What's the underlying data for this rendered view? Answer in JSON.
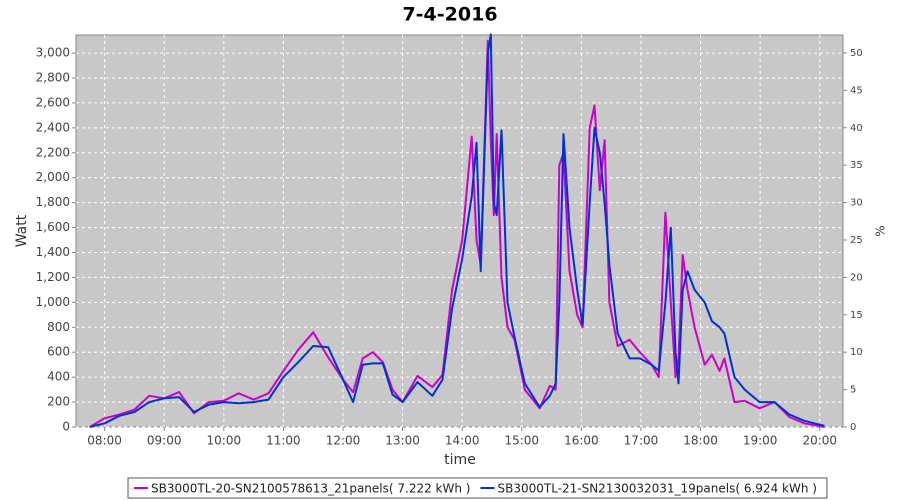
{
  "chart_data": {
    "type": "line",
    "title": "7-4-2016",
    "x_label": "time",
    "y_label": "Watt",
    "y2_label": "%",
    "x": [
      7.75,
      8,
      8.25,
      8.5,
      8.75,
      9,
      9.25,
      9.5,
      9.75,
      10,
      10.25,
      10.5,
      10.75,
      11,
      11.25,
      11.5,
      11.75,
      12,
      12.17,
      12.33,
      12.5,
      12.67,
      12.83,
      13,
      13.25,
      13.5,
      13.67,
      13.83,
      14.0,
      14.16,
      14.24,
      14.31,
      14.43,
      14.48,
      14.53,
      14.58,
      14.66,
      14.76,
      14.88,
      15.05,
      15.3,
      15.47,
      15.57,
      15.63,
      15.7,
      15.8,
      15.93,
      16.02,
      16.14,
      16.22,
      16.31,
      16.39,
      16.47,
      16.61,
      16.81,
      16.98,
      17.18,
      17.3,
      17.41,
      17.5,
      17.58,
      17.63,
      17.7,
      17.78,
      17.9,
      18.07,
      18.19,
      18.32,
      18.4,
      18.57,
      18.74,
      18.99,
      19.24,
      19.49,
      19.74,
      20.08
    ],
    "series": [
      {
        "name": "SB3000TL-20-SN2100578613_21panels( 7.222 kWh )",
        "color": "#cc00cc",
        "values": [
          0,
          70,
          100,
          140,
          250,
          230,
          280,
          110,
          200,
          210,
          270,
          220,
          270,
          450,
          620,
          760,
          560,
          380,
          280,
          550,
          600,
          520,
          300,
          200,
          410,
          320,
          420,
          1100,
          1500,
          2330,
          1500,
          1300,
          3100,
          2300,
          1700,
          2350,
          1200,
          800,
          700,
          300,
          150,
          330,
          300,
          2100,
          2200,
          1250,
          900,
          800,
          2400,
          2580,
          1900,
          2300,
          1000,
          650,
          700,
          600,
          500,
          400,
          1720,
          1000,
          400,
          550,
          1380,
          1100,
          800,
          500,
          580,
          450,
          550,
          200,
          210,
          150,
          200,
          80,
          30,
          0
        ]
      },
      {
        "name": "SB3000TL-21-SN2130032031_19panels( 6.924 kWh )",
        "color": "#0033cc",
        "values": [
          0,
          30,
          90,
          120,
          200,
          230,
          240,
          120,
          180,
          200,
          190,
          200,
          220,
          400,
          520,
          650,
          640,
          380,
          200,
          500,
          510,
          510,
          260,
          200,
          360,
          250,
          380,
          950,
          1350,
          1850,
          2280,
          1250,
          3000,
          3150,
          1800,
          1700,
          2380,
          1000,
          720,
          350,
          160,
          250,
          350,
          1000,
          2350,
          1600,
          1100,
          820,
          1800,
          2400,
          2200,
          1800,
          1300,
          750,
          550,
          550,
          500,
          450,
          1000,
          1600,
          600,
          350,
          1100,
          1250,
          1100,
          1000,
          850,
          800,
          750,
          400,
          300,
          200,
          200,
          100,
          50,
          10
        ]
      }
    ],
    "xlim": [
      7.52,
      20.39
    ],
    "xticks": [
      {
        "value": 8,
        "label": "08:00"
      },
      {
        "value": 9,
        "label": "09:00"
      },
      {
        "value": 10,
        "label": "10:00"
      },
      {
        "value": 11,
        "label": "11:00"
      },
      {
        "value": 12,
        "label": "12:00"
      },
      {
        "value": 13,
        "label": "13:00"
      },
      {
        "value": 14,
        "label": "14:00"
      },
      {
        "value": 15,
        "label": "15:00"
      },
      {
        "value": 16,
        "label": "16:00"
      },
      {
        "value": 17,
        "label": "17:00"
      },
      {
        "value": 18,
        "label": "18:00"
      },
      {
        "value": 19,
        "label": "19:00"
      },
      {
        "value": 20,
        "label": "20:00"
      }
    ],
    "ylim": [
      0,
      3145
    ],
    "yticks": [
      0,
      200,
      400,
      600,
      800,
      {
        "value": 1000,
        "label": "1,000"
      },
      {
        "value": 1200,
        "label": "1,200"
      },
      {
        "value": 1400,
        "label": "1,400"
      },
      {
        "value": 1600,
        "label": "1,600"
      },
      {
        "value": 1800,
        "label": "1,800"
      },
      {
        "value": 2000,
        "label": "2,000"
      },
      {
        "value": 2200,
        "label": "2,200"
      },
      {
        "value": 2400,
        "label": "2,400"
      },
      {
        "value": 2600,
        "label": "2,600"
      },
      {
        "value": 2800,
        "label": "2,800"
      },
      {
        "value": 3000,
        "label": "3,000"
      }
    ],
    "y2lim": [
      0,
      52.4
    ],
    "y2ticks": [
      0,
      5,
      10,
      15,
      20,
      25,
      30,
      35,
      40,
      45,
      50
    ],
    "grid": true,
    "legend": "bottom"
  }
}
